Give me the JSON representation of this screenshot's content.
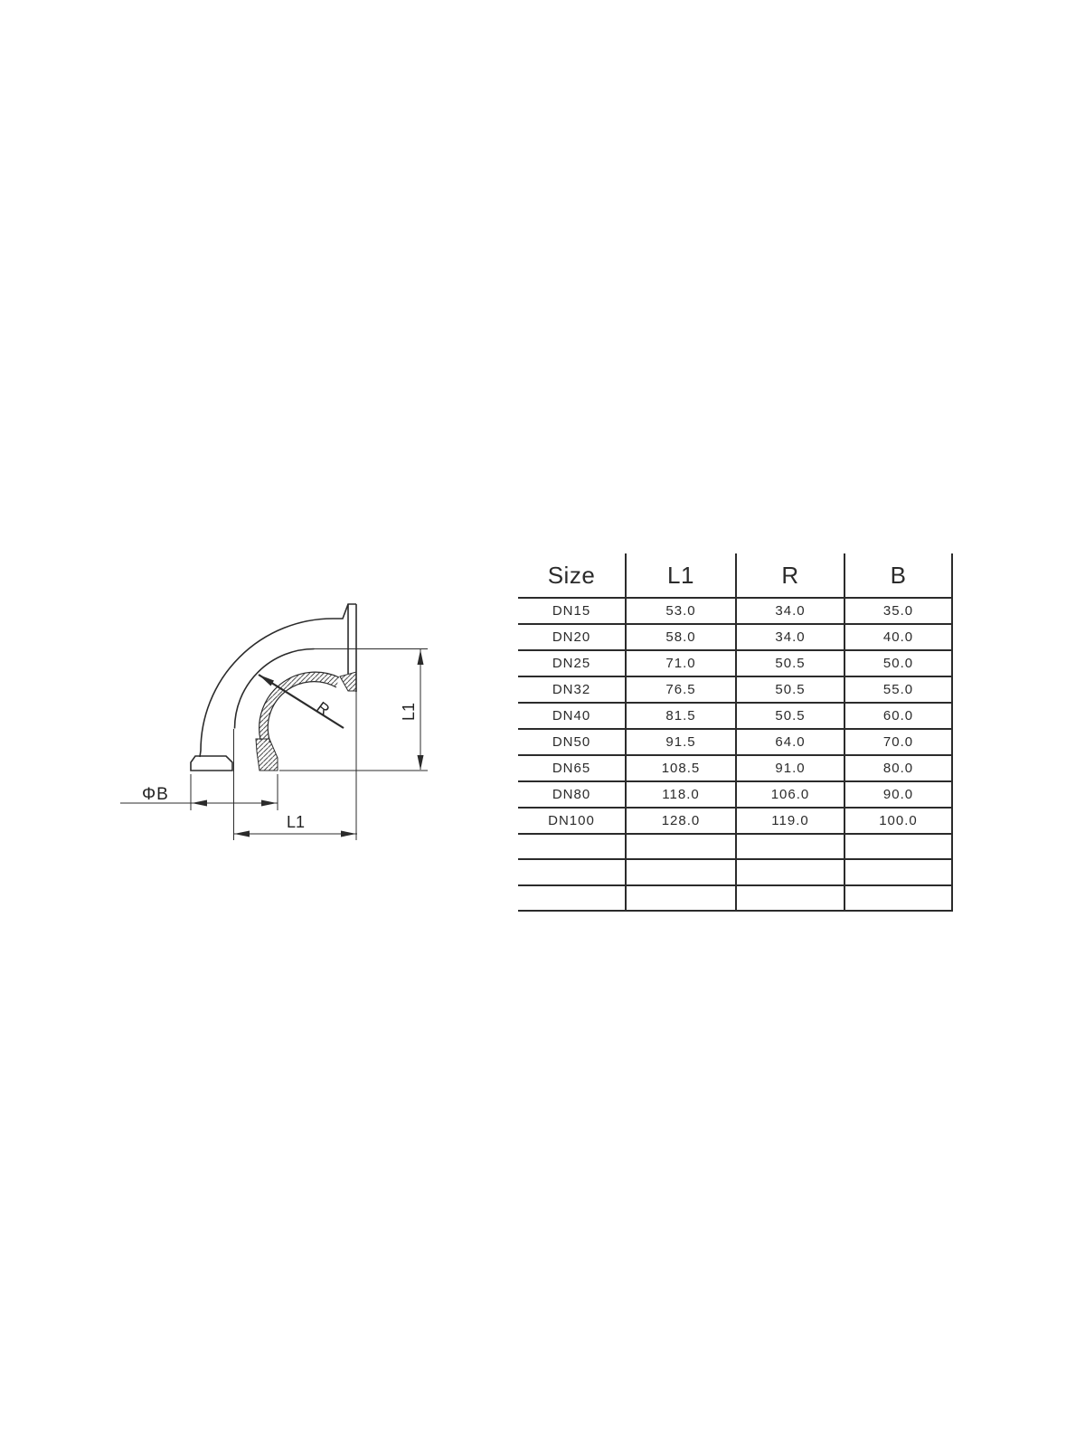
{
  "drawing": {
    "labels": {
      "diameter": "ΦB",
      "length_bottom": "L1",
      "length_vertical": "L1",
      "bend_radius": "R"
    }
  },
  "table": {
    "headers": [
      "Size",
      "L1",
      "R",
      "B"
    ],
    "rows": [
      [
        "DN15",
        "53.0",
        "34.0",
        "35.0"
      ],
      [
        "DN20",
        "58.0",
        "34.0",
        "40.0"
      ],
      [
        "DN25",
        "71.0",
        "50.5",
        "50.0"
      ],
      [
        "DN32",
        "76.5",
        "50.5",
        "55.0"
      ],
      [
        "DN40",
        "81.5",
        "50.5",
        "60.0"
      ],
      [
        "DN50",
        "91.5",
        "64.0",
        "70.0"
      ],
      [
        "DN65",
        "108.5",
        "91.0",
        "80.0"
      ],
      [
        "DN80",
        "118.0",
        "106.0",
        "90.0"
      ],
      [
        "DN100",
        "128.0",
        "119.0",
        "100.0"
      ]
    ],
    "empty_row_count": 3
  },
  "colors": {
    "ink": "#2b2b2b",
    "background": "#ffffff"
  }
}
